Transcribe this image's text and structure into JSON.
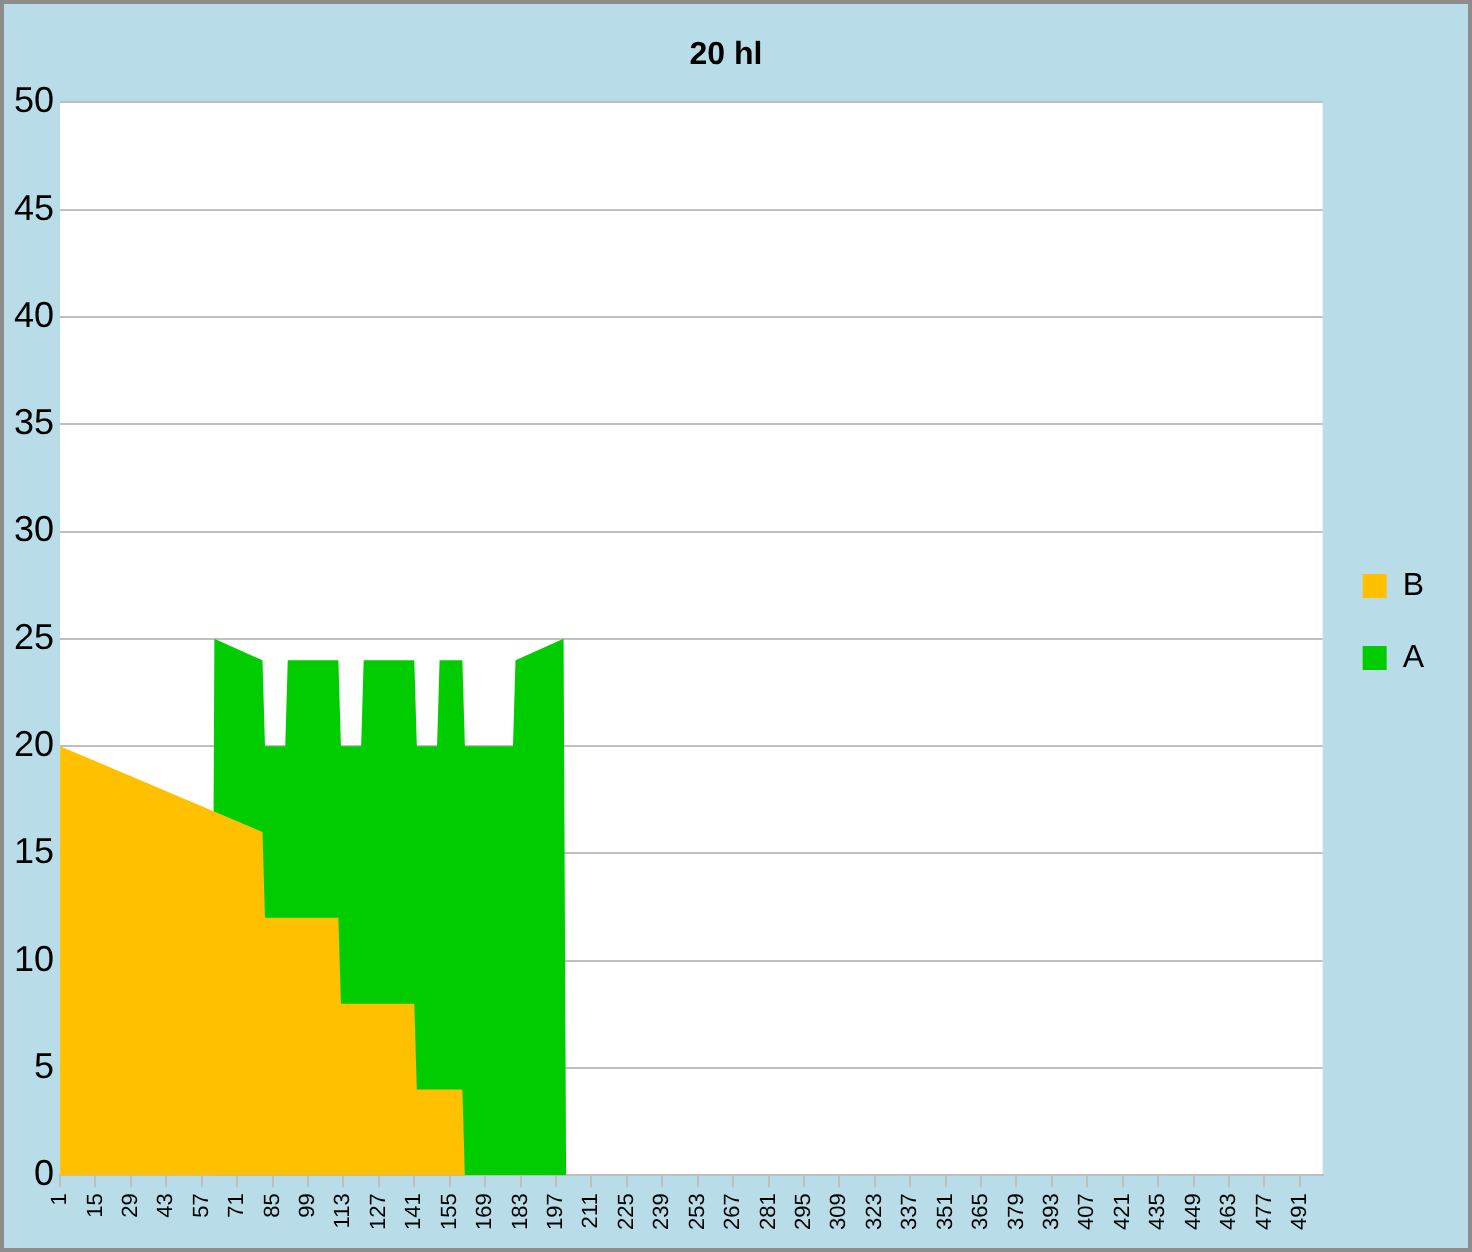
{
  "chart_data": {
    "type": "area",
    "title": "20 hl",
    "series": [
      {
        "name": "A",
        "color": "#00cc00",
        "x": [
          1,
          61,
          62,
          81,
          82,
          90,
          91,
          111,
          112,
          120,
          121,
          141,
          142,
          150,
          151,
          160,
          161,
          180,
          181,
          200,
          201
        ],
        "values": [
          0,
          0,
          25,
          24,
          20,
          20,
          24,
          24,
          20,
          20,
          24,
          24,
          20,
          20,
          24,
          24,
          20,
          20,
          24,
          25,
          0
        ]
      },
      {
        "name": "B",
        "color": "#ffc000",
        "x": [
          1,
          81,
          82,
          111,
          112,
          141,
          142,
          160,
          161
        ],
        "values": [
          20,
          16,
          12,
          12,
          8,
          8,
          4,
          4,
          0
        ]
      }
    ],
    "xlim": [
      1,
      500
    ],
    "xticks": [
      1,
      15,
      29,
      43,
      57,
      71,
      85,
      99,
      113,
      127,
      141,
      155,
      169,
      183,
      197,
      211,
      225,
      239,
      253,
      267,
      281,
      295,
      309,
      323,
      337,
      351,
      365,
      379,
      393,
      407,
      421,
      435,
      449,
      463,
      477,
      491
    ],
    "ylim": [
      0,
      50
    ],
    "yticks": [
      0,
      5,
      10,
      15,
      20,
      25,
      30,
      35,
      40,
      45,
      50
    ],
    "grid": "y",
    "legend": "right"
  }
}
